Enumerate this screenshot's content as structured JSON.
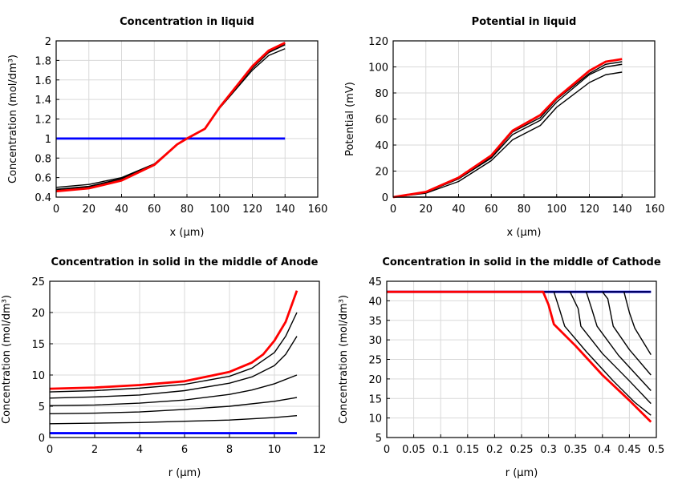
{
  "colors": {
    "red": "#ff0000",
    "blue": "#0000ff",
    "black": "#000000",
    "grid": "#d9d9d9"
  },
  "chart_data": [
    {
      "type": "line",
      "title": "Concentration in liquid",
      "xlabel": "x (µm)",
      "ylabel": "Concentration (mol/dm³)",
      "xlim": [
        0,
        160
      ],
      "ylim": [
        0.4,
        2
      ],
      "xticks": [
        "0",
        "20",
        "40",
        "60",
        "80",
        "100",
        "120",
        "140",
        "160"
      ],
      "yticks": [
        "0.4",
        "0.6",
        "0.8",
        "1",
        "1.2",
        "1.4",
        "1.6",
        "1.8",
        "2"
      ],
      "grid": true,
      "series": [
        {
          "color": "black",
          "points": [
            [
              0,
              0.5
            ],
            [
              20,
              0.53
            ],
            [
              40,
              0.6
            ],
            [
              60,
              0.74
            ],
            [
              74,
              0.94
            ],
            [
              80,
              1.0
            ],
            [
              91,
              1.1
            ],
            [
              100,
              1.31
            ],
            [
              120,
              1.7
            ],
            [
              130,
              1.85
            ],
            [
              140,
              1.92
            ]
          ]
        },
        {
          "color": "black",
          "points": [
            [
              0,
              0.48
            ],
            [
              20,
              0.51
            ],
            [
              40,
              0.59
            ],
            [
              60,
              0.73
            ],
            [
              74,
              0.94
            ],
            [
              80,
              1.0
            ],
            [
              91,
              1.1
            ],
            [
              100,
              1.32
            ],
            [
              120,
              1.72
            ],
            [
              130,
              1.88
            ],
            [
              140,
              1.96
            ]
          ]
        },
        {
          "color": "black",
          "points": [
            [
              0,
              0.47
            ],
            [
              20,
              0.5
            ],
            [
              40,
              0.58
            ],
            [
              60,
              0.73
            ],
            [
              74,
              0.94
            ],
            [
              80,
              1.0
            ],
            [
              91,
              1.1
            ],
            [
              100,
              1.32
            ],
            [
              120,
              1.73
            ],
            [
              130,
              1.89
            ],
            [
              140,
              1.97
            ]
          ]
        },
        {
          "color": "blue",
          "points": [
            [
              0,
              1
            ],
            [
              140,
              1
            ]
          ]
        },
        {
          "color": "red",
          "points": [
            [
              0,
              0.46
            ],
            [
              20,
              0.49
            ],
            [
              40,
              0.57
            ],
            [
              60,
              0.73
            ],
            [
              74,
              0.94
            ],
            [
              80,
              1.0
            ],
            [
              91,
              1.1
            ],
            [
              100,
              1.32
            ],
            [
              120,
              1.74
            ],
            [
              130,
              1.9
            ],
            [
              140,
              1.98
            ]
          ]
        }
      ]
    },
    {
      "type": "line",
      "title": "Potential in liquid",
      "xlabel": "x (µm)",
      "ylabel": "Potential (mV)",
      "xlim": [
        0,
        160
      ],
      "ylim": [
        0,
        120
      ],
      "xticks": [
        "0",
        "20",
        "40",
        "60",
        "80",
        "100",
        "120",
        "140",
        "160"
      ],
      "yticks": [
        "0",
        "20",
        "40",
        "60",
        "80",
        "100",
        "120"
      ],
      "grid": true,
      "series": [
        {
          "color": "black",
          "points": [
            [
              0,
              0
            ],
            [
              140,
              0
            ]
          ]
        },
        {
          "color": "black",
          "points": [
            [
              0,
              0
            ],
            [
              20,
              3
            ],
            [
              40,
              12
            ],
            [
              60,
              28
            ],
            [
              73,
              44
            ],
            [
              90,
              55
            ],
            [
              100,
              69
            ],
            [
              120,
              88
            ],
            [
              130,
              94
            ],
            [
              140,
              96
            ]
          ]
        },
        {
          "color": "black",
          "points": [
            [
              0,
              0
            ],
            [
              20,
              3.5
            ],
            [
              40,
              14
            ],
            [
              60,
              30
            ],
            [
              73,
              48
            ],
            [
              90,
              59
            ],
            [
              100,
              73
            ],
            [
              120,
              94
            ],
            [
              130,
              100
            ],
            [
              140,
              102
            ]
          ]
        },
        {
          "color": "black",
          "points": [
            [
              0,
              0
            ],
            [
              20,
              4
            ],
            [
              40,
              14.5
            ],
            [
              60,
              31
            ],
            [
              73,
              50
            ],
            [
              90,
              61
            ],
            [
              100,
              75
            ],
            [
              120,
              95
            ],
            [
              130,
              102
            ],
            [
              140,
              104
            ]
          ]
        },
        {
          "color": "red",
          "points": [
            [
              0,
              0
            ],
            [
              20,
              4
            ],
            [
              40,
              15
            ],
            [
              60,
              32
            ],
            [
              73,
              51
            ],
            [
              90,
              63
            ],
            [
              100,
              76
            ],
            [
              120,
              97
            ],
            [
              130,
              104
            ],
            [
              140,
              106
            ]
          ]
        }
      ]
    },
    {
      "type": "line",
      "title": "Concentration in solid in the middle of Anode",
      "xlabel": "r (µm)",
      "ylabel": "Concentration (mol/dm³)",
      "xlim": [
        0,
        12
      ],
      "ylim": [
        0,
        25
      ],
      "xticks": [
        "0",
        "2",
        "4",
        "6",
        "8",
        "10",
        "12"
      ],
      "yticks": [
        "0",
        "5",
        "10",
        "15",
        "20",
        "25"
      ],
      "grid": true,
      "series": [
        {
          "color": "blue",
          "points": [
            [
              0,
              0.7
            ],
            [
              11,
              0.7
            ]
          ]
        },
        {
          "color": "black",
          "points": [
            [
              0,
              2.2
            ],
            [
              2,
              2.3
            ],
            [
              4,
              2.4
            ],
            [
              6,
              2.6
            ],
            [
              8,
              2.8
            ],
            [
              10,
              3.2
            ],
            [
              11,
              3.5
            ]
          ]
        },
        {
          "color": "black",
          "points": [
            [
              0,
              3.8
            ],
            [
              2,
              3.9
            ],
            [
              4,
              4.1
            ],
            [
              6,
              4.5
            ],
            [
              8,
              5.0
            ],
            [
              10,
              5.8
            ],
            [
              11,
              6.4
            ]
          ]
        },
        {
          "color": "black",
          "points": [
            [
              0,
              5.1
            ],
            [
              2,
              5.2
            ],
            [
              4,
              5.5
            ],
            [
              6,
              6.0
            ],
            [
              8,
              6.9
            ],
            [
              9,
              7.6
            ],
            [
              10,
              8.6
            ],
            [
              11,
              10.0
            ]
          ]
        },
        {
          "color": "black",
          "points": [
            [
              0,
              6.3
            ],
            [
              2,
              6.5
            ],
            [
              4,
              6.8
            ],
            [
              6,
              7.5
            ],
            [
              8,
              8.7
            ],
            [
              9,
              9.7
            ],
            [
              10,
              11.5
            ],
            [
              10.5,
              13.3
            ],
            [
              11,
              16.2
            ]
          ]
        },
        {
          "color": "black",
          "points": [
            [
              0,
              7.3
            ],
            [
              2,
              7.5
            ],
            [
              4,
              7.9
            ],
            [
              6,
              8.5
            ],
            [
              8,
              9.8
            ],
            [
              9,
              11.1
            ],
            [
              10,
              13.6
            ],
            [
              10.5,
              16.2
            ],
            [
              11,
              20.0
            ]
          ]
        },
        {
          "color": "red",
          "points": [
            [
              0,
              7.8
            ],
            [
              2,
              8.0
            ],
            [
              4,
              8.4
            ],
            [
              6,
              9.0
            ],
            [
              8,
              10.5
            ],
            [
              9,
              12.0
            ],
            [
              9.5,
              13.3
            ],
            [
              10,
              15.5
            ],
            [
              10.5,
              18.5
            ],
            [
              11,
              23.5
            ]
          ]
        }
      ]
    },
    {
      "type": "line",
      "title": "Concentration in solid in the middle of Cathode",
      "xlabel": "r (µm)",
      "ylabel": "Concentration (mol/dm³)",
      "xlim": [
        0,
        0.5
      ],
      "ylim": [
        5,
        45
      ],
      "xticks": [
        "0",
        "0.05",
        "0.1",
        "0.15",
        "0.2",
        "0.25",
        "0.3",
        "0.35",
        "0.4",
        "0.45",
        "0.5"
      ],
      "yticks": [
        "5",
        "10",
        "15",
        "20",
        "25",
        "30",
        "35",
        "40",
        "45"
      ],
      "grid": true,
      "series": [
        {
          "color": "blue",
          "points": [
            [
              0,
              42.3
            ],
            [
              0.49,
              42.3
            ]
          ]
        },
        {
          "color": "black",
          "points": [
            [
              0.29,
              42.3
            ],
            [
              0.49,
              42.3
            ]
          ]
        },
        {
          "color": "black",
          "points": [
            [
              0.44,
              42.3
            ],
            [
              0.45,
              37
            ],
            [
              0.46,
              33
            ],
            [
              0.49,
              26.2
            ]
          ]
        },
        {
          "color": "black",
          "points": [
            [
              0.4,
              42.3
            ],
            [
              0.41,
              40.5
            ],
            [
              0.42,
              33.5
            ],
            [
              0.45,
              27.5
            ],
            [
              0.49,
              21
            ]
          ]
        },
        {
          "color": "black",
          "points": [
            [
              0.37,
              42.3
            ],
            [
              0.38,
              38
            ],
            [
              0.39,
              33.5
            ],
            [
              0.43,
              26
            ],
            [
              0.49,
              17
            ]
          ]
        },
        {
          "color": "black",
          "points": [
            [
              0.34,
              42.3
            ],
            [
              0.355,
              38
            ],
            [
              0.36,
              33.5
            ],
            [
              0.4,
              26.5
            ],
            [
              0.45,
              19.5
            ],
            [
              0.49,
              13.7
            ]
          ]
        },
        {
          "color": "black",
          "points": [
            [
              0.31,
              42.3
            ],
            [
              0.32,
              38
            ],
            [
              0.33,
              33.5
            ],
            [
              0.37,
              27
            ],
            [
              0.42,
              19.5
            ],
            [
              0.46,
              14
            ],
            [
              0.49,
              10.7
            ]
          ]
        },
        {
          "color": "red",
          "points": [
            [
              0,
              42.3
            ],
            [
              0.29,
              42.3
            ],
            [
              0.3,
              39
            ],
            [
              0.31,
              34
            ],
            [
              0.35,
              28.5
            ],
            [
              0.4,
              21
            ],
            [
              0.45,
              14.5
            ],
            [
              0.49,
              9
            ]
          ]
        }
      ]
    }
  ]
}
